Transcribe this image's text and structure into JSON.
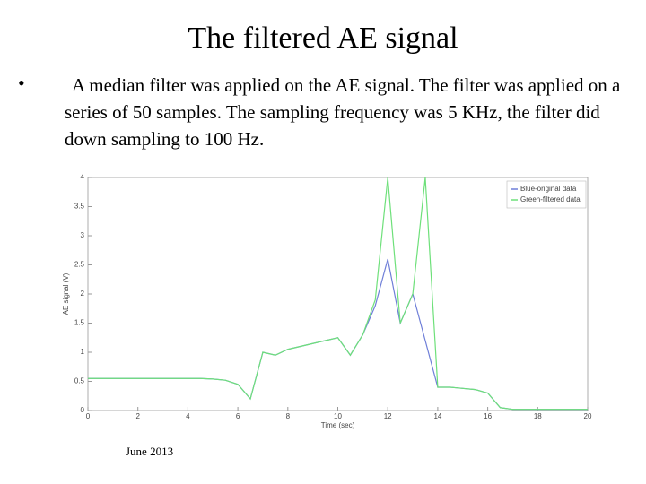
{
  "header": {
    "title": "The filtered AE signal"
  },
  "body": {
    "text": "A median filter was applied on the AE signal. The filter was applied on a series of 50 samples. The sampling frequency was 5 KHz, the filter did down sampling to 100 Hz."
  },
  "footer": {
    "date": "June 2013"
  },
  "chart_data": {
    "type": "line",
    "x_label": "Time (sec)",
    "y_label": "AE signal (V)",
    "x": [
      0,
      0.5,
      1,
      1.5,
      2,
      2.5,
      3,
      3.5,
      4,
      4.5,
      5,
      5.5,
      6,
      6.5,
      7,
      7.5,
      8,
      8.5,
      9,
      9.5,
      10,
      10.5,
      11,
      11.5,
      12,
      12.5,
      13,
      13.5,
      14,
      14.5,
      15,
      15.5,
      16,
      16.5,
      17,
      17.5,
      18,
      18.5,
      19,
      19.5,
      20
    ],
    "series": [
      {
        "name": "Blue-original data",
        "color": "#6f7fd8",
        "values": [
          0.55,
          0.55,
          0.55,
          0.55,
          0.55,
          0.55,
          0.55,
          0.55,
          0.55,
          0.55,
          0.54,
          0.52,
          0.45,
          0.2,
          1.0,
          0.95,
          1.05,
          1.1,
          1.15,
          1.2,
          1.25,
          0.95,
          1.3,
          1.8,
          2.6,
          1.5,
          2.0,
          1.2,
          0.4,
          0.4,
          0.38,
          0.36,
          0.3,
          0.05,
          0.02,
          0.02,
          0.02,
          0.02,
          0.02,
          0.02,
          0.02
        ]
      },
      {
        "name": "Green-filtered data",
        "color": "#6ee07a",
        "values": [
          0.55,
          0.55,
          0.55,
          0.55,
          0.55,
          0.55,
          0.55,
          0.55,
          0.55,
          0.55,
          0.54,
          0.52,
          0.45,
          0.2,
          1.0,
          0.95,
          1.05,
          1.1,
          1.15,
          1.2,
          1.25,
          0.95,
          1.3,
          1.9,
          4,
          1.5,
          2.0,
          4,
          0.4,
          0.4,
          0.38,
          0.36,
          0.3,
          0.05,
          0.02,
          0.02,
          0.02,
          0.02,
          0.02,
          0.02,
          0.02
        ]
      }
    ],
    "xlim": [
      0,
      20
    ],
    "ylim": [
      0,
      4
    ],
    "xticks": [
      0,
      2,
      4,
      6,
      8,
      10,
      12,
      14,
      16,
      18,
      20
    ],
    "yticks": [
      0,
      0.5,
      1,
      1.5,
      2,
      2.5,
      3,
      3.5,
      4
    ],
    "legend": "upper right"
  }
}
